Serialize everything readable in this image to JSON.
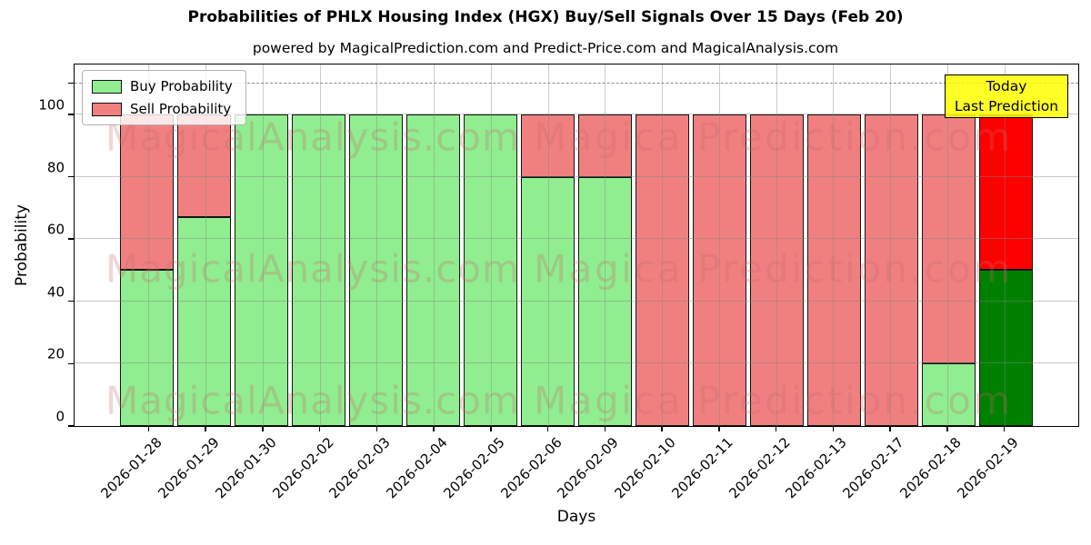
{
  "title": "Probabilities of PHLX Housing Index (HGX) Buy/Sell Signals Over 15 Days (Feb 20)",
  "subtitle": "powered by MagicalPrediction.com and Predict-Price.com and MagicalAnalysis.com",
  "legend": {
    "items": [
      {
        "label": "Buy Probability",
        "color": "#90EE90"
      },
      {
        "label": "Sell Probability",
        "color": "#F08080"
      }
    ]
  },
  "annotation": {
    "line1": "Today",
    "line2": "Last Prediction",
    "bg": "#FFFF00"
  },
  "watermarks": {
    "left_text": "MagicalAnalysis.com",
    "right_text": "Magica Prediction.com"
  },
  "colors": {
    "buy_normal": "#90EE90",
    "sell_normal": "#F08080",
    "buy_last": "#008000",
    "sell_last": "#FF0000",
    "annotation_bg": "#FFFF00",
    "dashed_line": "#8a8a8a"
  },
  "chart_data": {
    "type": "bar",
    "stacked": true,
    "title": "Probabilities of PHLX Housing Index (HGX) Buy/Sell Signals Over 15 Days (Feb 20)",
    "xlabel": "Days",
    "ylabel": "Probability",
    "ylim": [
      0,
      116
    ],
    "yticks": [
      0,
      20,
      40,
      60,
      80,
      100
    ],
    "extra_unlabeled_ytick": 110,
    "dashed_hline_y": 110,
    "grid": true,
    "legend_position": "upper-left",
    "categories": [
      "2026-01-28",
      "2026-01-29",
      "2026-01-30",
      "2026-02-02",
      "2026-02-03",
      "2026-02-04",
      "2026-02-05",
      "2026-02-06",
      "2026-02-09",
      "2026-02-10",
      "2026-02-11",
      "2026-02-12",
      "2026-02-13",
      "2026-02-17",
      "2026-02-18",
      "2026-02-19"
    ],
    "series": [
      {
        "name": "Buy Probability",
        "color": "#90EE90",
        "values": [
          50,
          67,
          100,
          100,
          100,
          100,
          100,
          80,
          80,
          0,
          0,
          0,
          0,
          0,
          20,
          50
        ]
      },
      {
        "name": "Sell Probability",
        "color": "#F08080",
        "values": [
          50,
          33,
          0,
          0,
          0,
          0,
          0,
          20,
          20,
          100,
          100,
          100,
          100,
          100,
          80,
          50
        ]
      }
    ],
    "last_bar_highlight": {
      "buy_color": "#008000",
      "sell_color": "#FF0000"
    }
  }
}
